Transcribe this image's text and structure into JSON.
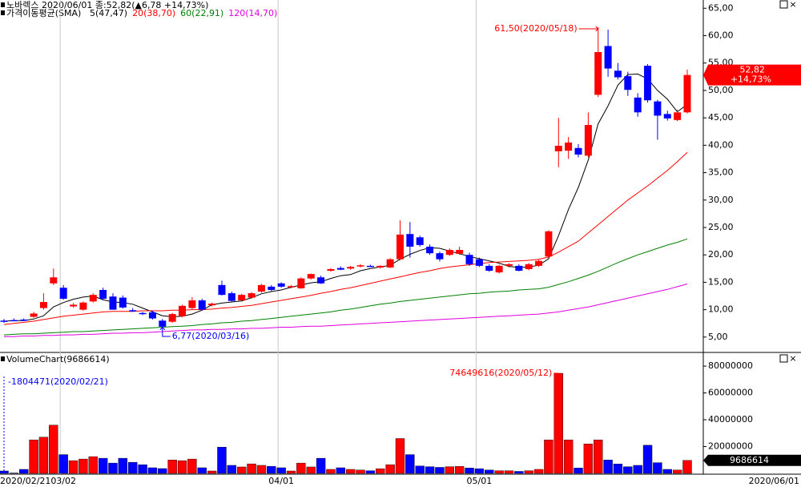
{
  "chart_data": [
    {
      "type": "candlestick",
      "title": "노바렉스  2020/06/01 종:52,82(▲6,78 +14,73%)",
      "legend_title": "가격이동평균(SMA)",
      "up_color": "#ff0000",
      "down_color": "#0000ff",
      "open": [
        8.0,
        8.1,
        8.2,
        8.7,
        10.3,
        14.8,
        14.0,
        10.6,
        10.0,
        11.5,
        13.6,
        12.4,
        12.2,
        9.9,
        9.4,
        9.5,
        8.0,
        7.8,
        8.8,
        10.3,
        11.7,
        10.8,
        14.5,
        13.0,
        11.7,
        12.2,
        13.3,
        14.2,
        14.8,
        14.1,
        13.9,
        15.7,
        15.9,
        17.1,
        17.6,
        17.5,
        17.9,
        18.0,
        17.7,
        17.7,
        19.2,
        23.8,
        23.2,
        21.5,
        20.3,
        20.0,
        20.2,
        20.0,
        19.2,
        18.0,
        16.8,
        18.0,
        18.0,
        17.4,
        18.0,
        19.7,
        38.9,
        39.0,
        39.5,
        38.1,
        49.2,
        58.1,
        53.6,
        52.6,
        48.7,
        54.5,
        48.0,
        45.7,
        44.6,
        46.0
      ],
      "high": [
        8.3,
        8.4,
        8.4,
        9.6,
        13.0,
        17.5,
        14.5,
        11.2,
        11.5,
        13.0,
        14.0,
        13.0,
        12.6,
        10.3,
        9.6,
        9.8,
        8.3,
        9.4,
        10.9,
        12.3,
        12.0,
        11.3,
        15.3,
        13.3,
        12.9,
        13.2,
        14.7,
        14.5,
        15.0,
        14.5,
        15.9,
        16.6,
        16.2,
        17.6,
        17.9,
        18.0,
        18.3,
        18.2,
        18.1,
        19.4,
        26.3,
        26.0,
        23.5,
        21.9,
        20.6,
        21.2,
        21.5,
        20.4,
        19.5,
        18.3,
        18.2,
        18.5,
        18.3,
        18.5,
        19.1,
        24.5,
        45.0,
        41.5,
        40.2,
        46.0,
        61.5,
        61.1,
        55.0,
        53.4,
        49.5,
        54.8,
        48.3,
        46.3,
        46.5,
        53.8
      ],
      "low": [
        7.6,
        7.9,
        7.9,
        8.5,
        10.0,
        14.5,
        11.8,
        10.4,
        9.8,
        11.3,
        11.8,
        10.0,
        10.2,
        9.6,
        9.0,
        8.2,
        6.77,
        7.6,
        8.6,
        10.1,
        9.9,
        10.6,
        12.6,
        11.5,
        11.6,
        12.0,
        13.1,
        13.4,
        14.0,
        13.9,
        13.8,
        15.5,
        14.7,
        16.9,
        17.2,
        17.3,
        17.7,
        17.8,
        17.5,
        17.6,
        19.0,
        19.5,
        21.5,
        20.0,
        18.8,
        19.8,
        20.0,
        18.0,
        17.8,
        16.9,
        16.6,
        17.7,
        17.0,
        17.2,
        17.8,
        19.5,
        36.0,
        37.5,
        37.8,
        37.8,
        48.8,
        52.5,
        52.0,
        49.0,
        45.2,
        47.8,
        41.0,
        44.5,
        44.4,
        45.8
      ],
      "close": [
        7.8,
        8.0,
        8.0,
        9.3,
        11.4,
        15.9,
        12.0,
        10.9,
        11.3,
        12.7,
        12.0,
        10.0,
        10.4,
        9.8,
        9.2,
        8.4,
        6.9,
        9.2,
        10.7,
        11.7,
        10.0,
        11.1,
        12.7,
        11.6,
        12.7,
        13.0,
        14.5,
        13.6,
        14.2,
        14.3,
        15.7,
        16.5,
        14.8,
        17.4,
        17.3,
        17.8,
        18.1,
        17.9,
        18.0,
        19.2,
        23.7,
        21.5,
        21.8,
        20.3,
        19.2,
        20.9,
        20.9,
        18.3,
        18.0,
        17.1,
        18.0,
        18.3,
        17.1,
        18.3,
        18.9,
        24.3,
        39.9,
        40.5,
        38.3,
        43.7,
        57.0,
        54.0,
        52.4,
        50.1,
        46.0,
        48.2,
        45.4,
        44.9,
        46.0,
        52.82
      ],
      "series": [
        {
          "name": "5(47,47)",
          "color": "#000000",
          "values": [
            7.9,
            8.0,
            8.0,
            8.3,
            8.9,
            10.5,
            11.3,
            11.9,
            12.3,
            12.5,
            11.8,
            11.4,
            11.3,
            11.0,
            10.3,
            9.6,
            8.9,
            8.7,
            8.8,
            9.2,
            9.9,
            10.9,
            11.2,
            11.4,
            11.6,
            12.2,
            12.9,
            13.3,
            13.6,
            14.1,
            14.5,
            14.9,
            15.1,
            15.7,
            16.2,
            16.4,
            17.1,
            17.5,
            17.8,
            18.1,
            19.2,
            20.1,
            20.8,
            21.3,
            21.2,
            20.7,
            20.2,
            19.7,
            19.3,
            18.9,
            18.5,
            17.9,
            17.7,
            17.8,
            18.1,
            19.3,
            23.5,
            28.3,
            32.3,
            37.3,
            43.9,
            47.2,
            51.0,
            52.9,
            53.0,
            52.1,
            50.0,
            48.4,
            46.1,
            47.47
          ]
        },
        {
          "name": "20(38,70)",
          "color": "#ff0000",
          "values": [
            7.3,
            7.5,
            7.7,
            7.9,
            8.2,
            8.5,
            8.8,
            9.0,
            9.2,
            9.4,
            9.6,
            9.7,
            9.7,
            9.7,
            9.8,
            9.8,
            9.8,
            9.9,
            9.9,
            10.0,
            10.0,
            10.1,
            10.3,
            10.4,
            10.6,
            10.8,
            11.1,
            11.4,
            11.7,
            12.0,
            12.3,
            12.6,
            13.0,
            13.3,
            13.7,
            14.0,
            14.4,
            14.8,
            15.2,
            15.6,
            16.0,
            16.4,
            16.8,
            17.1,
            17.5,
            17.8,
            18.0,
            18.2,
            18.4,
            18.6,
            18.7,
            18.8,
            18.9,
            19.0,
            19.2,
            19.6,
            20.5,
            21.5,
            22.5,
            24.0,
            25.5,
            27.0,
            28.5,
            30.0,
            31.3,
            32.6,
            34.0,
            35.4,
            37.0,
            38.7
          ]
        },
        {
          "name": "60(22,91)",
          "color": "#008000",
          "values": [
            5.4,
            5.5,
            5.6,
            5.6,
            5.7,
            5.8,
            5.9,
            6.0,
            6.0,
            6.1,
            6.2,
            6.3,
            6.4,
            6.5,
            6.6,
            6.7,
            6.8,
            6.9,
            7.0,
            7.1,
            7.3,
            7.4,
            7.6,
            7.7,
            7.9,
            8.0,
            8.2,
            8.4,
            8.6,
            8.8,
            9.0,
            9.2,
            9.4,
            9.6,
            9.9,
            10.1,
            10.4,
            10.7,
            11.0,
            11.2,
            11.5,
            11.7,
            11.9,
            12.1,
            12.3,
            12.5,
            12.7,
            12.9,
            13.0,
            13.2,
            13.3,
            13.4,
            13.6,
            13.7,
            13.8,
            14.1,
            14.6,
            15.1,
            15.7,
            16.3,
            17.0,
            17.8,
            18.6,
            19.3,
            20.0,
            20.6,
            21.2,
            21.8,
            22.3,
            22.91
          ]
        },
        {
          "name": "120(14,70)",
          "color": "#e000e0",
          "values": [
            5.1,
            5.1,
            5.2,
            5.2,
            5.3,
            5.3,
            5.4,
            5.4,
            5.5,
            5.5,
            5.6,
            5.7,
            5.7,
            5.8,
            5.8,
            5.9,
            6.0,
            6.1,
            6.2,
            6.3,
            6.3,
            6.4,
            6.4,
            6.5,
            6.5,
            6.6,
            6.6,
            6.7,
            6.8,
            6.8,
            6.9,
            7.0,
            7.0,
            7.1,
            7.2,
            7.3,
            7.4,
            7.5,
            7.6,
            7.7,
            7.8,
            7.9,
            8.0,
            8.1,
            8.2,
            8.3,
            8.4,
            8.5,
            8.6,
            8.7,
            8.8,
            8.9,
            9.0,
            9.1,
            9.2,
            9.4,
            9.6,
            9.9,
            10.2,
            10.5,
            10.9,
            11.3,
            11.7,
            12.1,
            12.5,
            12.9,
            13.3,
            13.7,
            14.2,
            14.7
          ]
        }
      ],
      "ylim": [
        2.2,
        66.5
      ],
      "yticks": [
        {
          "value": 65,
          "label": "65,00"
        },
        {
          "value": 60,
          "label": "60,00"
        },
        {
          "value": 55,
          "label": "55,00"
        },
        {
          "value": 50,
          "label": "50,00"
        },
        {
          "value": 45,
          "label": "45,00"
        },
        {
          "value": 40,
          "label": "40,00"
        },
        {
          "value": 35,
          "label": "35,00"
        },
        {
          "value": 30,
          "label": "30,00"
        },
        {
          "value": 25,
          "label": "25,00"
        },
        {
          "value": 20,
          "label": "20,00"
        },
        {
          "value": 15,
          "label": "15,00"
        },
        {
          "value": 10,
          "label": "10,00"
        },
        {
          "value": 5,
          "label": "5,00"
        }
      ],
      "annotations": [
        "61,50(2020/05/18)",
        "6,77(2020/03/16)"
      ],
      "last_price_label": "52,82",
      "last_change_label": "+14,73%"
    },
    {
      "type": "bar",
      "title": "VolumeChart(9686614)",
      "values": [
        1804471,
        300000,
        3000000,
        25000000,
        27000000,
        36000000,
        14000000,
        9500000,
        10700000,
        12500000,
        11300000,
        7700000,
        11300000,
        8300000,
        6500000,
        4200000,
        3600000,
        10000000,
        9500000,
        10700000,
        4200000,
        1800000,
        19600000,
        6000000,
        4800000,
        7100000,
        6000000,
        5300000,
        4200000,
        1800000,
        7700000,
        4800000,
        11300000,
        3000000,
        4200000,
        3000000,
        2500000,
        2000000,
        3500000,
        6500000,
        26000000,
        14000000,
        5500000,
        5000000,
        4500000,
        5000000,
        5200000,
        4000000,
        3500000,
        2500000,
        2000000,
        2000000,
        1500000,
        2000000,
        3000000,
        25000000,
        74649616,
        25000000,
        4000000,
        22000000,
        25000000,
        10000000,
        7000000,
        5000000,
        6000000,
        21000000,
        8000000,
        3000000,
        2500000,
        9686614
      ],
      "ylim": [
        0,
        89000000
      ],
      "yticks": [
        80000000,
        60000000,
        40000000,
        20000000
      ],
      "annotations": [
        "74649616(2020/05/12)",
        "-1804471(2020/02/21)"
      ],
      "last_value_label": "9686614",
      "x_labels": [
        "2020/02/21",
        "03/02",
        "04/01",
        "05/01",
        "2020/06/01"
      ]
    }
  ]
}
